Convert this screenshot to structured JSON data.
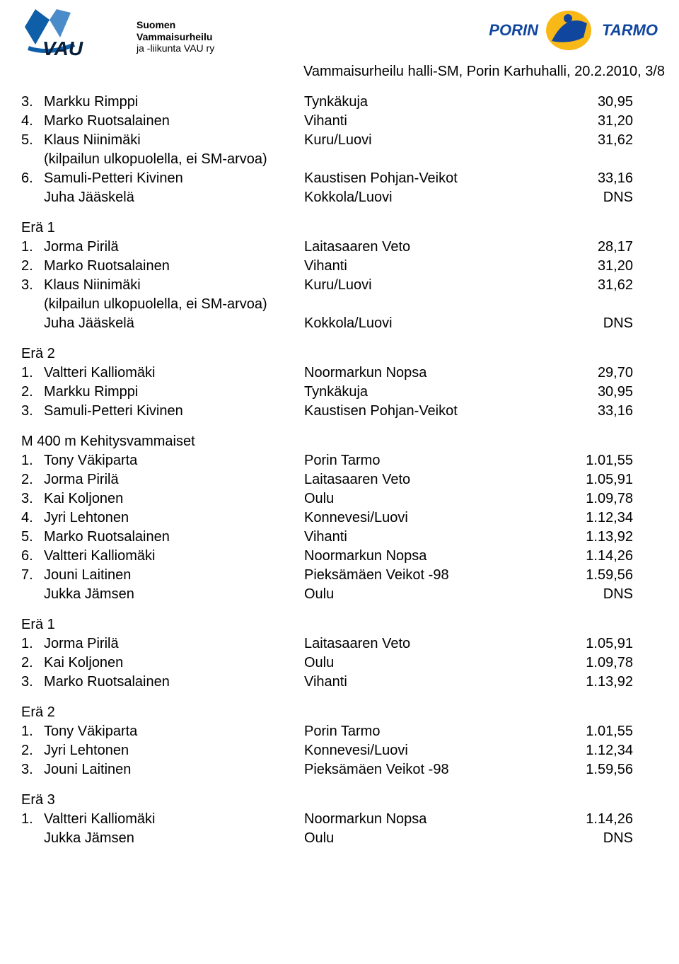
{
  "header": {
    "left_logo_alt": "VAU logo",
    "left_text_line1": "Suomen",
    "left_text_line2": "Vammaisurheilu",
    "left_text_line3": "ja -liikunta VAU ry",
    "right_logo_text1": "PORIN",
    "right_logo_text2": "TARMO",
    "subtitle": "Vammaisurheilu halli-SM, Porin Karhuhalli, 20.2.2010, 3/8"
  },
  "sections": [
    {
      "title": "",
      "rows": [
        {
          "place": "3.",
          "name": "Markku Rimppi",
          "club": "Tynkäkuja",
          "result": "30,95"
        },
        {
          "place": "4.",
          "name": "Marko Ruotsalainen",
          "club": "Vihanti",
          "result": "31,20"
        },
        {
          "place": "5.",
          "name": "Klaus Niinimäki",
          "club": "Kuru/Luovi",
          "result": "31,62"
        },
        {
          "note": "(kilpailun ulkopuolella, ei SM-arvoa)"
        },
        {
          "place": "6.",
          "name": "Samuli-Petteri Kivinen",
          "club": "Kaustisen Pohjan-Veikot",
          "result": "33,16"
        },
        {
          "place": "",
          "name": "Juha Jääskelä",
          "club": "Kokkola/Luovi",
          "result": "DNS"
        }
      ]
    },
    {
      "title": "Erä 1",
      "rows": [
        {
          "place": "1.",
          "name": "Jorma Pirilä",
          "club": "Laitasaaren Veto",
          "result": "28,17"
        },
        {
          "place": "2.",
          "name": "Marko Ruotsalainen",
          "club": "Vihanti",
          "result": "31,20"
        },
        {
          "place": "3.",
          "name": "Klaus Niinimäki",
          "club": "Kuru/Luovi",
          "result": "31,62"
        },
        {
          "note": "(kilpailun ulkopuolella, ei SM-arvoa)"
        },
        {
          "place": "",
          "name": "Juha Jääskelä",
          "club": "Kokkola/Luovi",
          "result": "DNS"
        }
      ]
    },
    {
      "title": "Erä 2",
      "rows": [
        {
          "place": "1.",
          "name": "Valtteri Kalliomäki",
          "club": "Noormarkun Nopsa",
          "result": "29,70"
        },
        {
          "place": "2.",
          "name": "Markku Rimppi",
          "club": "Tynkäkuja",
          "result": "30,95"
        },
        {
          "place": "3.",
          "name": "Samuli-Petteri Kivinen",
          "club": "Kaustisen Pohjan-Veikot",
          "result": "33,16"
        }
      ]
    },
    {
      "title": "M 400 m Kehitysvammaiset",
      "rows": [
        {
          "place": "1.",
          "name": "Tony Väkiparta",
          "club": "Porin Tarmo",
          "result": "1.01,55"
        },
        {
          "place": "2.",
          "name": "Jorma Pirilä",
          "club": "Laitasaaren Veto",
          "result": "1.05,91"
        },
        {
          "place": "3.",
          "name": "Kai Koljonen",
          "club": "Oulu",
          "result": "1.09,78"
        },
        {
          "place": "4.",
          "name": "Jyri Lehtonen",
          "club": "Konnevesi/Luovi",
          "result": "1.12,34"
        },
        {
          "place": "5.",
          "name": "Marko Ruotsalainen",
          "club": "Vihanti",
          "result": "1.13,92"
        },
        {
          "place": "6.",
          "name": "Valtteri Kalliomäki",
          "club": "Noormarkun Nopsa",
          "result": "1.14,26"
        },
        {
          "place": "7.",
          "name": "Jouni Laitinen",
          "club": "Pieksämäen Veikot -98",
          "result": "1.59,56"
        },
        {
          "place": "",
          "name": "Jukka Jämsen",
          "club": "Oulu",
          "result": "DNS"
        }
      ]
    },
    {
      "title": "Erä 1",
      "rows": [
        {
          "place": "1.",
          "name": "Jorma Pirilä",
          "club": "Laitasaaren Veto",
          "result": "1.05,91"
        },
        {
          "place": "2.",
          "name": "Kai Koljonen",
          "club": "Oulu",
          "result": "1.09,78"
        },
        {
          "place": "3.",
          "name": "Marko Ruotsalainen",
          "club": "Vihanti",
          "result": "1.13,92"
        }
      ]
    },
    {
      "title": "Erä 2",
      "rows": [
        {
          "place": "1.",
          "name": "Tony Väkiparta",
          "club": "Porin Tarmo",
          "result": "1.01,55"
        },
        {
          "place": "2.",
          "name": "Jyri Lehtonen",
          "club": "Konnevesi/Luovi",
          "result": "1.12,34"
        },
        {
          "place": "3.",
          "name": "Jouni Laitinen",
          "club": "Pieksämäen Veikot -98",
          "result": "1.59,56"
        }
      ]
    },
    {
      "title": "Erä 3",
      "rows": [
        {
          "place": "1.",
          "name": "Valtteri Kalliomäki",
          "club": "Noormarkun Nopsa",
          "result": "1.14,26"
        },
        {
          "place": "",
          "name": "Jukka Jämsen",
          "club": "Oulu",
          "result": "DNS"
        }
      ]
    }
  ],
  "colors": {
    "vau_blue": "#0f5ea8",
    "porin_blue": "#11469f",
    "porin_yellow": "#f8b817",
    "text": "#000000",
    "bg": "#ffffff"
  }
}
